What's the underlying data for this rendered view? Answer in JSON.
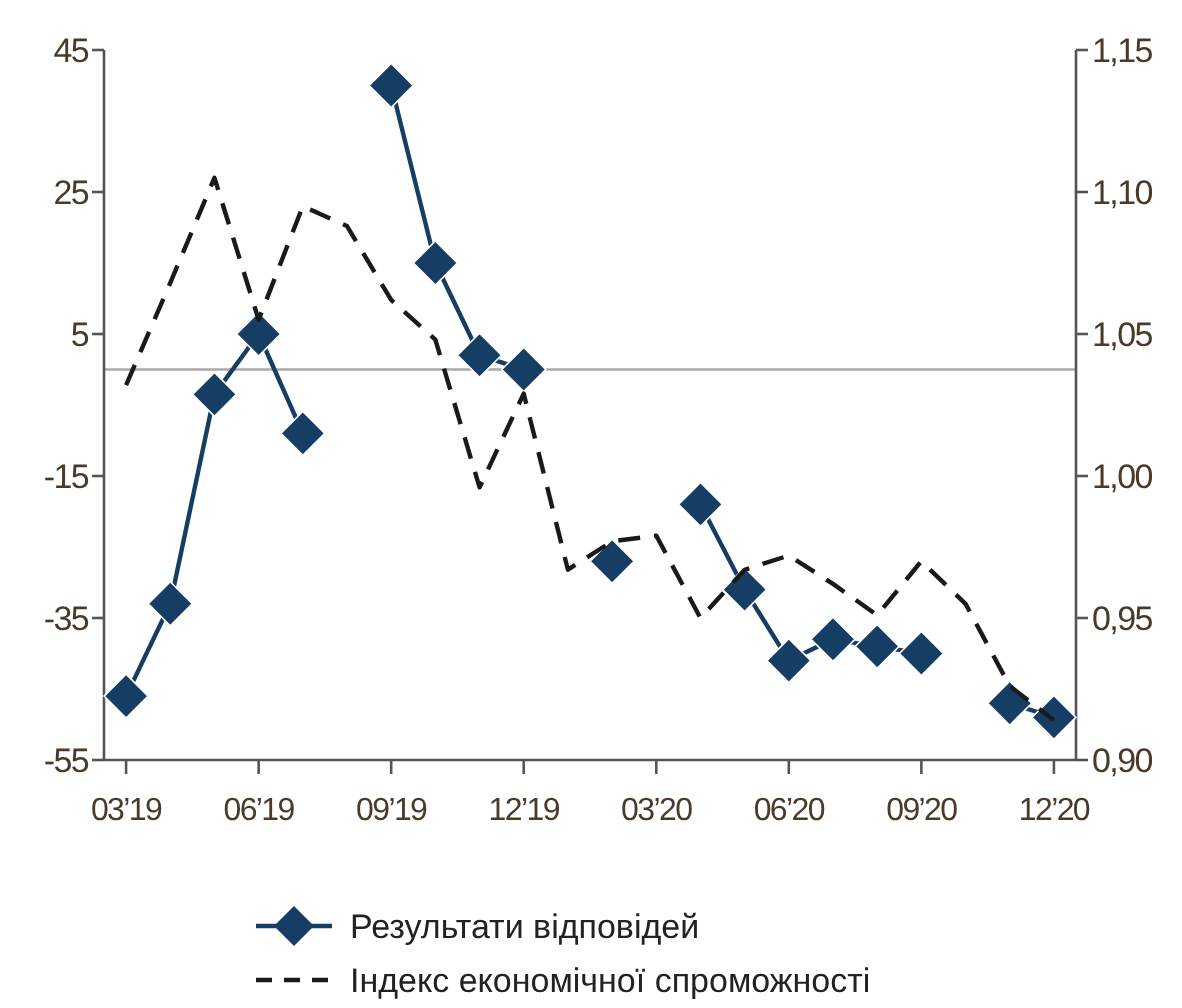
{
  "chart_data": {
    "type": "line",
    "categories": [
      "03’19",
      null,
      null,
      "06’19",
      null,
      null,
      "09’19",
      null,
      null,
      "12’19",
      null,
      null,
      "03’20",
      null,
      null,
      "06’20",
      null,
      null,
      "09’20",
      null,
      null,
      "12’20"
    ],
    "series": [
      {
        "name": "Результати відповідей",
        "color": "#163d63",
        "marker": "diamond",
        "line_style": "solid",
        "values": [
          -46,
          -33,
          -3.5,
          5,
          -9,
          null,
          40,
          15,
          2,
          0,
          null,
          -27,
          null,
          -19,
          -31,
          -41,
          -38,
          -39,
          -40,
          null,
          -47,
          -49
        ]
      },
      {
        "name": "Індекс економічної спроможності",
        "color": "#1a1a1a",
        "marker": "none",
        "line_style": "dashed",
        "axis": "y2",
        "values": [
          1.032,
          1.068,
          1.105,
          1.055,
          1.095,
          1.088,
          1.062,
          1.048,
          0.996,
          1.029,
          0.967,
          0.977,
          0.979,
          0.95,
          0.967,
          0.972,
          0.962,
          0.951,
          0.97,
          0.955,
          0.926,
          0.914
        ]
      }
    ],
    "ylim": [
      -55,
      45
    ],
    "yticks": [
      -55,
      -35,
      -15,
      5,
      25,
      45
    ],
    "y2lim": [
      0.9,
      1.15
    ],
    "y2ticks": [
      {
        "value": 0.9,
        "label": "0,90"
      },
      {
        "value": 0.95,
        "label": "0,95"
      },
      {
        "value": 1.0,
        "label": "1,00"
      },
      {
        "value": 1.05,
        "label": "1,05"
      },
      {
        "value": 1.1,
        "label": "1,10"
      },
      {
        "value": 1.15,
        "label": "1,15"
      }
    ],
    "ref_lines": [
      {
        "axis": "y",
        "value": 0,
        "color": "#aaaaaa"
      }
    ],
    "grid": false,
    "legend": "bottom"
  }
}
